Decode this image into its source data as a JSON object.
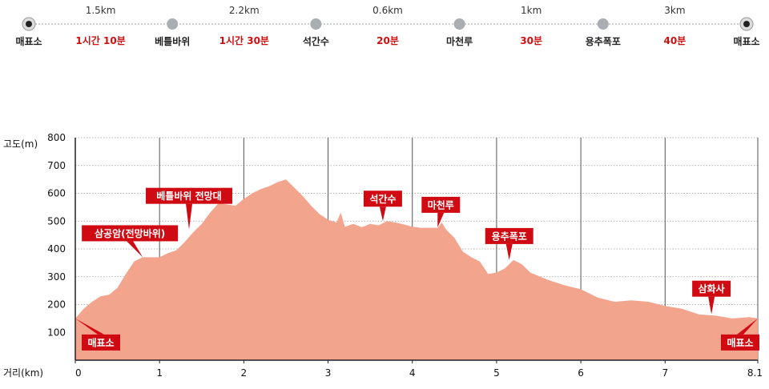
{
  "route": {
    "stations": [
      {
        "name": "매표소",
        "endpoint": true
      },
      {
        "name": "베틀바위",
        "endpoint": false
      },
      {
        "name": "석간수",
        "endpoint": false
      },
      {
        "name": "마천루",
        "endpoint": false
      },
      {
        "name": "용추폭포",
        "endpoint": false
      },
      {
        "name": "매표소",
        "endpoint": true
      }
    ],
    "segments": [
      {
        "distance": "1.5km",
        "time": "1시간 10분"
      },
      {
        "distance": "2.2km",
        "time": "1시간 30분"
      },
      {
        "distance": "0.6km",
        "time": "20분"
      },
      {
        "distance": "1km",
        "time": "30분"
      },
      {
        "distance": "3km",
        "time": "40분"
      }
    ]
  },
  "chart_data": {
    "type": "area",
    "title": "",
    "ylabel": "고도(m)",
    "xlabel": "거리(km)",
    "xlim": [
      0,
      8.1
    ],
    "ylim": [
      0,
      800
    ],
    "x_ticks": [
      0,
      1,
      2,
      3,
      4,
      5,
      6,
      7,
      8.1
    ],
    "x_tick_labels": [
      "0",
      "1",
      "2",
      "3",
      "4",
      "5",
      "6",
      "7",
      "8.1"
    ],
    "y_ticks": [
      100,
      200,
      300,
      400,
      500,
      600,
      700,
      800
    ],
    "y_tick_labels": [
      "100",
      "200",
      "300",
      "400",
      "500",
      "600",
      "700",
      "800"
    ],
    "grid": {
      "horizontal": "dotted",
      "vertical": "solid"
    },
    "fill_color": "#f2a48d",
    "callout_color": "#d00a12",
    "series": [
      {
        "x": [
          0,
          0.1,
          0.2,
          0.3,
          0.4,
          0.5,
          0.6,
          0.7,
          0.8,
          0.9,
          1.0,
          1.1,
          1.2,
          1.3,
          1.4,
          1.5,
          1.6,
          1.7,
          1.8,
          1.9,
          2.0,
          2.1,
          2.2,
          2.3,
          2.4,
          2.5,
          2.6,
          2.7,
          2.8,
          2.9,
          3.0,
          3.1,
          3.15,
          3.2,
          3.3,
          3.4,
          3.5,
          3.6,
          3.7,
          3.8,
          3.9,
          4.0,
          4.1,
          4.2,
          4.3,
          4.35,
          4.4,
          4.5,
          4.6,
          4.7,
          4.8,
          4.9,
          5.0,
          5.1,
          5.2,
          5.3,
          5.4,
          5.6,
          5.8,
          6.0,
          6.2,
          6.4,
          6.6,
          6.8,
          7.0,
          7.2,
          7.4,
          7.6,
          7.8,
          8.0,
          8.1
        ],
        "y": [
          150,
          185,
          210,
          230,
          235,
          260,
          310,
          355,
          370,
          370,
          370,
          385,
          395,
          425,
          460,
          490,
          530,
          565,
          560,
          555,
          580,
          600,
          615,
          625,
          640,
          650,
          620,
          590,
          555,
          525,
          505,
          495,
          530,
          480,
          490,
          478,
          490,
          485,
          500,
          495,
          488,
          480,
          476,
          476,
          476,
          495,
          470,
          440,
          390,
          370,
          355,
          310,
          315,
          330,
          360,
          345,
          315,
          290,
          270,
          255,
          225,
          210,
          215,
          210,
          195,
          185,
          165,
          160,
          150,
          155,
          150
        ]
      }
    ],
    "annotations": [
      {
        "text": "삼공암(전망바위)",
        "x": 0.8,
        "y": 370
      },
      {
        "text": "베틀바위 전망대",
        "x": 1.35,
        "y": 470
      },
      {
        "text": "석간수",
        "x": 3.65,
        "y": 500
      },
      {
        "text": "마천루",
        "x": 4.3,
        "y": 478
      },
      {
        "text": "용추폭포",
        "x": 5.15,
        "y": 360
      },
      {
        "text": "삼화사",
        "x": 7.55,
        "y": 165
      },
      {
        "text": "매표소",
        "x": 0,
        "y": 150
      },
      {
        "text": "매표소",
        "x": 8.1,
        "y": 150
      }
    ]
  }
}
